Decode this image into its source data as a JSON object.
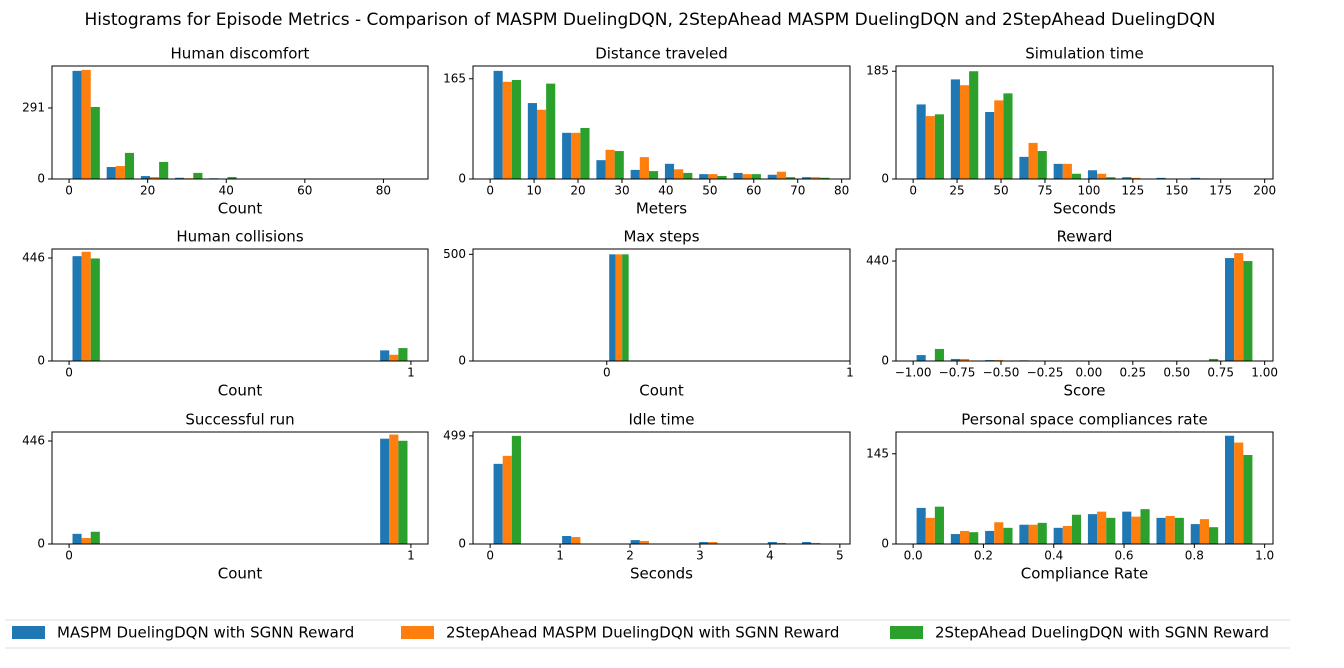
{
  "title": "Histograms for Episode Metrics - Comparison of MASPM DuelingDQN, 2StepAhead MASPM DuelingDQN and 2StepAhead DuelingDQN",
  "legend": [
    {
      "name": "MASPM DuelingDQN with SGNN Reward",
      "color": "#1f77b4"
    },
    {
      "name": "2StepAhead MASPM DuelingDQN with SGNN Reward",
      "color": "#ff7f0e"
    },
    {
      "name": "2StepAhead DuelingDQN with SGNN Reward",
      "color": "#2ca02c"
    }
  ],
  "chart_data": [
    {
      "type": "histogram",
      "title": "Human discomfort",
      "xlabel": "Count",
      "bins": [
        0,
        8.7,
        17.4,
        26.1,
        34.8,
        43.5,
        52.2,
        60.9,
        69.6,
        78.3,
        87
      ],
      "xlim": [
        -4.35,
        91.35
      ],
      "xticks": [
        0,
        20,
        40,
        60,
        80
      ],
      "ylim": [
        0,
        463
      ],
      "yticks": [
        0,
        291
      ],
      "series": [
        {
          "values": [
            443,
            49,
            12,
            5,
            3,
            1,
            0,
            0,
            0,
            0
          ]
        },
        {
          "values": [
            447,
            53,
            8,
            3,
            2,
            0,
            0,
            0,
            0,
            0
          ]
        },
        {
          "values": [
            295,
            107,
            70,
            25,
            8,
            1,
            2,
            0,
            0,
            0
          ]
        }
      ]
    },
    {
      "type": "histogram",
      "title": "Distance traveled",
      "xlabel": "Meters",
      "bins": [
        0,
        7.8,
        15.6,
        23.4,
        31.2,
        39,
        46.8,
        54.6,
        62.4,
        70.2,
        78
      ],
      "xlim": [
        -3.9,
        81.9
      ],
      "xticks": [
        0,
        10,
        20,
        30,
        40,
        50,
        60,
        70,
        80
      ],
      "ylim": [
        0,
        186
      ],
      "yticks": [
        0,
        165
      ],
      "series": [
        {
          "values": [
            178,
            125,
            76,
            31,
            15,
            25,
            8,
            10,
            7,
            3
          ]
        },
        {
          "values": [
            160,
            114,
            76,
            48,
            36,
            16,
            8,
            8,
            12,
            3
          ]
        },
        {
          "values": [
            163,
            157,
            84,
            46,
            13,
            10,
            5,
            8,
            3,
            2
          ]
        }
      ]
    },
    {
      "type": "histogram",
      "title": "Simulation time",
      "xlabel": "Seconds",
      "bins": [
        0,
        19.5,
        39,
        58.5,
        78,
        97.5,
        117,
        136.5,
        156,
        175.5,
        195
      ],
      "xlim": [
        -9.75,
        204.75
      ],
      "xticks": [
        0,
        25,
        50,
        75,
        100,
        125,
        150,
        175,
        200
      ],
      "ylim": [
        0,
        194
      ],
      "yticks": [
        0,
        185
      ],
      "series": [
        {
          "values": [
            128,
            171,
            115,
            38,
            26,
            15,
            3,
            2,
            2,
            0
          ]
        },
        {
          "values": [
            108,
            161,
            135,
            62,
            26,
            9,
            2,
            0,
            1,
            0
          ]
        },
        {
          "values": [
            111,
            185,
            147,
            48,
            9,
            3,
            0,
            0,
            0,
            0
          ]
        }
      ]
    },
    {
      "type": "histogram",
      "title": "Human collisions",
      "xlabel": "Count",
      "bins": [
        0,
        0.1,
        0.2,
        0.3,
        0.4,
        0.5,
        0.6,
        0.7,
        0.8,
        0.9,
        1
      ],
      "xlim": [
        -0.05,
        1.05
      ],
      "xticks": [
        0,
        1
      ],
      "ylim": [
        0,
        485
      ],
      "yticks": [
        0,
        446
      ],
      "series": [
        {
          "values": [
            454,
            0,
            0,
            0,
            0,
            0,
            0,
            0,
            0,
            46
          ]
        },
        {
          "values": [
            473,
            0,
            0,
            0,
            0,
            0,
            0,
            0,
            0,
            27
          ]
        },
        {
          "values": [
            444,
            0,
            0,
            0,
            0,
            0,
            0,
            0,
            0,
            56
          ]
        }
      ]
    },
    {
      "type": "histogram",
      "title": "Max steps",
      "xlabel": "Count",
      "bins": [
        -0.5,
        -0.4,
        -0.3,
        -0.2,
        -0.1,
        0,
        0.1,
        0.2,
        0.3,
        0.4,
        0.5
      ],
      "xlim": [
        -0.55,
        1
      ],
      "xticks": [
        0,
        1
      ],
      "ylim": [
        0,
        525
      ],
      "yticks": [
        0,
        500
      ],
      "series": [
        {
          "values": [
            0,
            0,
            0,
            0,
            0,
            500,
            0,
            0,
            0,
            0
          ]
        },
        {
          "values": [
            0,
            0,
            0,
            0,
            0,
            500,
            0,
            0,
            0,
            0
          ]
        },
        {
          "values": [
            0,
            0,
            0,
            0,
            0,
            500,
            0,
            0,
            0,
            0
          ]
        }
      ]
    },
    {
      "type": "histogram",
      "title": "Reward",
      "xlabel": "Score",
      "bins": [
        -1,
        -0.805,
        -0.61,
        -0.415,
        -0.22,
        -0.025,
        0.17,
        0.365,
        0.56,
        0.755,
        0.95
      ],
      "xlim": [
        -1.0975,
        1.0475
      ],
      "xticks": [
        {
          "value": -1,
          "label": "−1.00"
        },
        {
          "value": -0.75,
          "label": "−0.75"
        },
        {
          "value": -0.5,
          "label": "−0.50"
        },
        {
          "value": -0.25,
          "label": "−0.25"
        },
        {
          "value": 0,
          "label": "0.00"
        },
        {
          "value": 0.25,
          "label": "0.25"
        },
        {
          "value": 0.5,
          "label": "0.50"
        },
        {
          "value": 0.75,
          "label": "0.75"
        },
        {
          "value": 1,
          "label": "1.00"
        }
      ],
      "ylim": [
        0,
        493
      ],
      "yticks": [
        0,
        440
      ],
      "series": [
        {
          "values": [
            26,
            9,
            4,
            3,
            0,
            0,
            0,
            0,
            0,
            453
          ]
        },
        {
          "values": [
            2,
            9,
            4,
            0,
            0,
            0,
            0,
            0,
            0,
            475
          ]
        },
        {
          "values": [
            53,
            0,
            0,
            0,
            0,
            0,
            0,
            0,
            9,
            440
          ]
        }
      ]
    },
    {
      "type": "histogram",
      "title": "Successful run",
      "xlabel": "Count",
      "bins": [
        0,
        0.1,
        0.2,
        0.3,
        0.4,
        0.5,
        0.6,
        0.7,
        0.8,
        0.9,
        1
      ],
      "xlim": [
        -0.05,
        1.05
      ],
      "xticks": [
        0,
        1
      ],
      "ylim": [
        0,
        485
      ],
      "yticks": [
        0,
        446
      ],
      "series": [
        {
          "values": [
            44,
            0,
            0,
            0,
            0,
            0,
            0,
            0,
            0,
            456
          ]
        },
        {
          "values": [
            26,
            0,
            0,
            0,
            0,
            0,
            0,
            0,
            0,
            474
          ]
        },
        {
          "values": [
            53,
            0,
            0,
            0,
            0,
            0,
            0,
            0,
            0,
            447
          ]
        }
      ]
    },
    {
      "type": "histogram",
      "title": "Idle time",
      "xlabel": "Seconds",
      "bins": [
        0,
        0.49,
        0.98,
        1.47,
        1.96,
        2.45,
        2.94,
        3.43,
        3.92,
        4.41,
        4.9
      ],
      "xlim": [
        -0.245,
        5.145
      ],
      "xticks": [
        0,
        1,
        2,
        3,
        4,
        5
      ],
      "ylim": [
        0,
        517
      ],
      "yticks": [
        0,
        499
      ],
      "series": [
        {
          "values": [
            370,
            0,
            37,
            0,
            18,
            0,
            9,
            0,
            9,
            9
          ]
        },
        {
          "values": [
            407,
            0,
            32,
            0,
            14,
            0,
            9,
            0,
            5,
            5
          ]
        },
        {
          "values": [
            499,
            0,
            0,
            0,
            0,
            0,
            0,
            0,
            0,
            0
          ]
        }
      ]
    },
    {
      "type": "histogram",
      "title": "Personal space compliances rate",
      "xlabel": "Compliance Rate",
      "bins": [
        0,
        0.0975,
        0.195,
        0.2925,
        0.39,
        0.4875,
        0.585,
        0.6825,
        0.78,
        0.8775,
        0.975
      ],
      "xlim": [
        -0.04875,
        1.02375
      ],
      "xticks": [
        {
          "value": 0,
          "label": "0.0"
        },
        {
          "value": 0.2,
          "label": "0.2"
        },
        {
          "value": 0.4,
          "label": "0.4"
        },
        {
          "value": 0.6,
          "label": "0.6"
        },
        {
          "value": 0.8,
          "label": "0.8"
        },
        {
          "value": 1,
          "label": "1.0"
        }
      ],
      "ylim": [
        0,
        180
      ],
      "yticks": [
        0,
        145
      ],
      "series": [
        {
          "values": [
            58,
            16,
            21,
            31,
            26,
            48,
            52,
            42,
            32,
            174
          ]
        },
        {
          "values": [
            42,
            21,
            35,
            31,
            29,
            52,
            44,
            45,
            40,
            163
          ]
        },
        {
          "values": [
            60,
            19,
            26,
            34,
            47,
            42,
            56,
            42,
            27,
            143
          ]
        }
      ]
    }
  ]
}
